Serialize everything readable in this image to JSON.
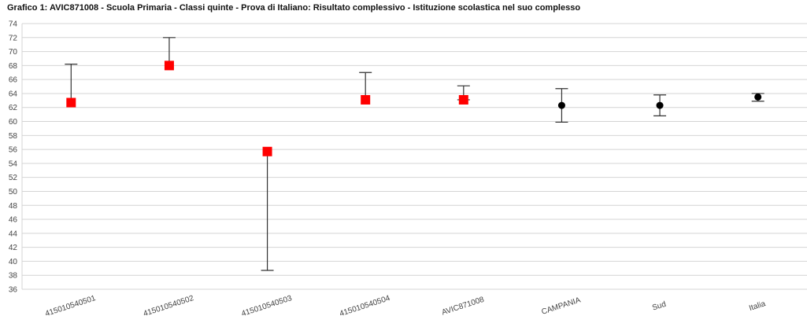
{
  "chart_data": {
    "type": "scatter",
    "title": "Grafico 1: AVIC871008 - Scuola Primaria - Classi quinte - Prova di Italiano: Risultato complessivo - Istituzione scolastica nel suo complesso",
    "xlabel": "",
    "ylabel": "",
    "ylim": [
      36,
      74
    ],
    "ytick_step": 2,
    "grid": true,
    "legend": "none",
    "categories": [
      "415010540501",
      "415010540502",
      "415010540503",
      "415010540504",
      "AVIC871008",
      "CAMPANIA",
      "Sud",
      "Italia"
    ],
    "values": [
      62.7,
      68.0,
      55.7,
      63.1,
      63.1,
      62.3,
      62.3,
      63.5
    ],
    "error_low": [
      null,
      null,
      38.7,
      null,
      63.1,
      59.9,
      60.8,
      62.9
    ],
    "error_high": [
      68.2,
      72.0,
      null,
      67.0,
      65.1,
      64.7,
      63.8,
      64.0
    ],
    "marker": [
      "square",
      "square",
      "square",
      "square",
      "square",
      "circle",
      "circle",
      "circle"
    ],
    "colors": {
      "square": "#ff0000",
      "circle": "#000000",
      "grid": "#d4d4d4",
      "errorbar": "#333333"
    }
  }
}
